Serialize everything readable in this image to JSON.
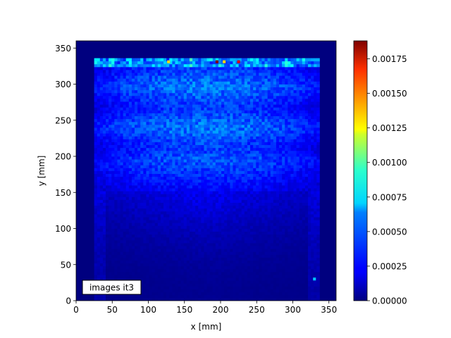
{
  "chart_data": {
    "type": "heatmap",
    "xlabel": "x [mm]",
    "ylabel": "y [mm]",
    "xlim": [
      0,
      360
    ],
    "ylim": [
      0,
      360
    ],
    "x_ticks": [
      0,
      50,
      100,
      150,
      200,
      250,
      300,
      350
    ],
    "y_ticks": [
      0,
      50,
      100,
      150,
      200,
      250,
      300,
      350
    ],
    "annotation": "images it3",
    "colormap": "jet",
    "colorbar": {
      "min": 0.0,
      "max": 0.00188,
      "ticks": [
        "0.00000",
        "0.00025",
        "0.00050",
        "0.00075",
        "0.00100",
        "0.00125",
        "0.00150",
        "0.00175"
      ],
      "tick_values": [
        0.0,
        0.00025,
        0.0005,
        0.00075,
        0.001,
        0.00125,
        0.0015,
        0.00175
      ]
    },
    "hot_region": {
      "x_range": [
        25,
        335
      ],
      "y_range": [
        0,
        335
      ],
      "cell_size_mm": 4,
      "typical_values": {
        "top_row_y330": 0.0006,
        "upper_body_y200_300": 0.0004,
        "middle_y150": 0.00022,
        "lower_y50_100": 8e-05,
        "background": 0.0
      },
      "peaks": [
        {
          "x": 195,
          "y": 331,
          "value": 0.00188
        },
        {
          "x": 225,
          "y": 331,
          "value": 0.0017
        },
        {
          "x": 128,
          "y": 331,
          "value": 0.00125
        },
        {
          "x": 205,
          "y": 331,
          "value": 0.00125
        },
        {
          "x": 330,
          "y": 30,
          "value": 0.0006
        }
      ]
    }
  },
  "colors": {
    "background": "#ffffff",
    "axis": "#000000"
  }
}
